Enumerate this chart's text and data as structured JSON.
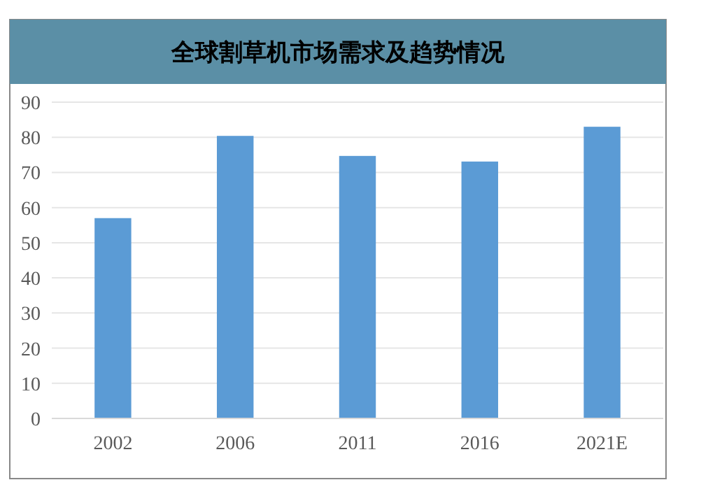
{
  "chart_data": {
    "type": "bar",
    "title": "全球割草机市场需求及趋势情况",
    "categories": [
      "2002",
      "2006",
      "2011",
      "2016",
      "2021E"
    ],
    "values": [
      57,
      80.4,
      74.7,
      73.1,
      83
    ],
    "color": "#5b9bd5",
    "ylim": [
      0,
      90
    ],
    "yticks": [
      0,
      10,
      20,
      30,
      40,
      50,
      60,
      70,
      80,
      90
    ],
    "grid": "y"
  }
}
